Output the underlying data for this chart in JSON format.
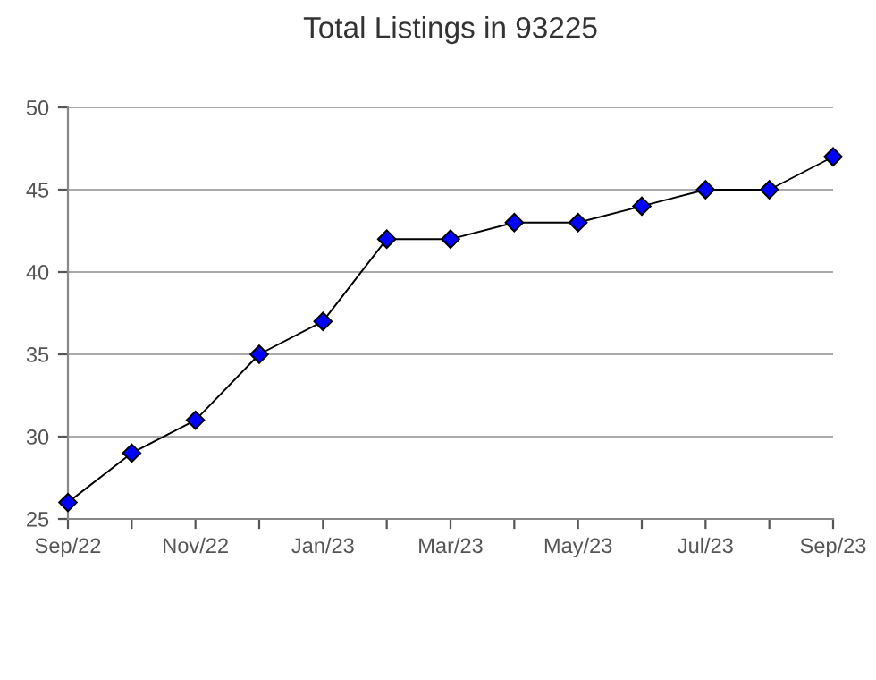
{
  "chart_data": {
    "type": "line",
    "title": "Total Listings in 93225",
    "x": [
      "2022-09",
      "2022-10",
      "2022-11",
      "2022-12",
      "2023-01",
      "2023-02",
      "2023-03",
      "2023-04",
      "2023-05",
      "2023-06",
      "2023-07",
      "2023-08",
      "2023-09"
    ],
    "series": [
      {
        "color": "#0000ff",
        "values": [
          26,
          29,
          31,
          35,
          37,
          42,
          42,
          43,
          43,
          44,
          45,
          45,
          47
        ]
      }
    ],
    "xlim": [
      "2022-09",
      "2023-09"
    ],
    "xticks": [
      {
        "value": "2022-09",
        "label": "Sep/22"
      },
      {
        "value": "2022-10",
        "label": null
      },
      {
        "value": "2022-11",
        "label": "Nov/22"
      },
      {
        "value": "2022-12",
        "label": null
      },
      {
        "value": "2023-01",
        "label": "Jan/23"
      },
      {
        "value": "2023-02",
        "label": null
      },
      {
        "value": "2023-03",
        "label": "Mar/23"
      },
      {
        "value": "2023-04",
        "label": null
      },
      {
        "value": "2023-05",
        "label": "May/23"
      },
      {
        "value": "2023-06",
        "label": null
      },
      {
        "value": "2023-07",
        "label": "Jul/23"
      },
      {
        "value": "2023-08",
        "label": null
      },
      {
        "value": "2023-09",
        "label": "Sep/23"
      }
    ],
    "ylim": [
      25,
      50
    ],
    "yticks": [
      25,
      30,
      35,
      40,
      45,
      50
    ],
    "grid": "y",
    "marker": "diamond",
    "line_style": "solid"
  }
}
